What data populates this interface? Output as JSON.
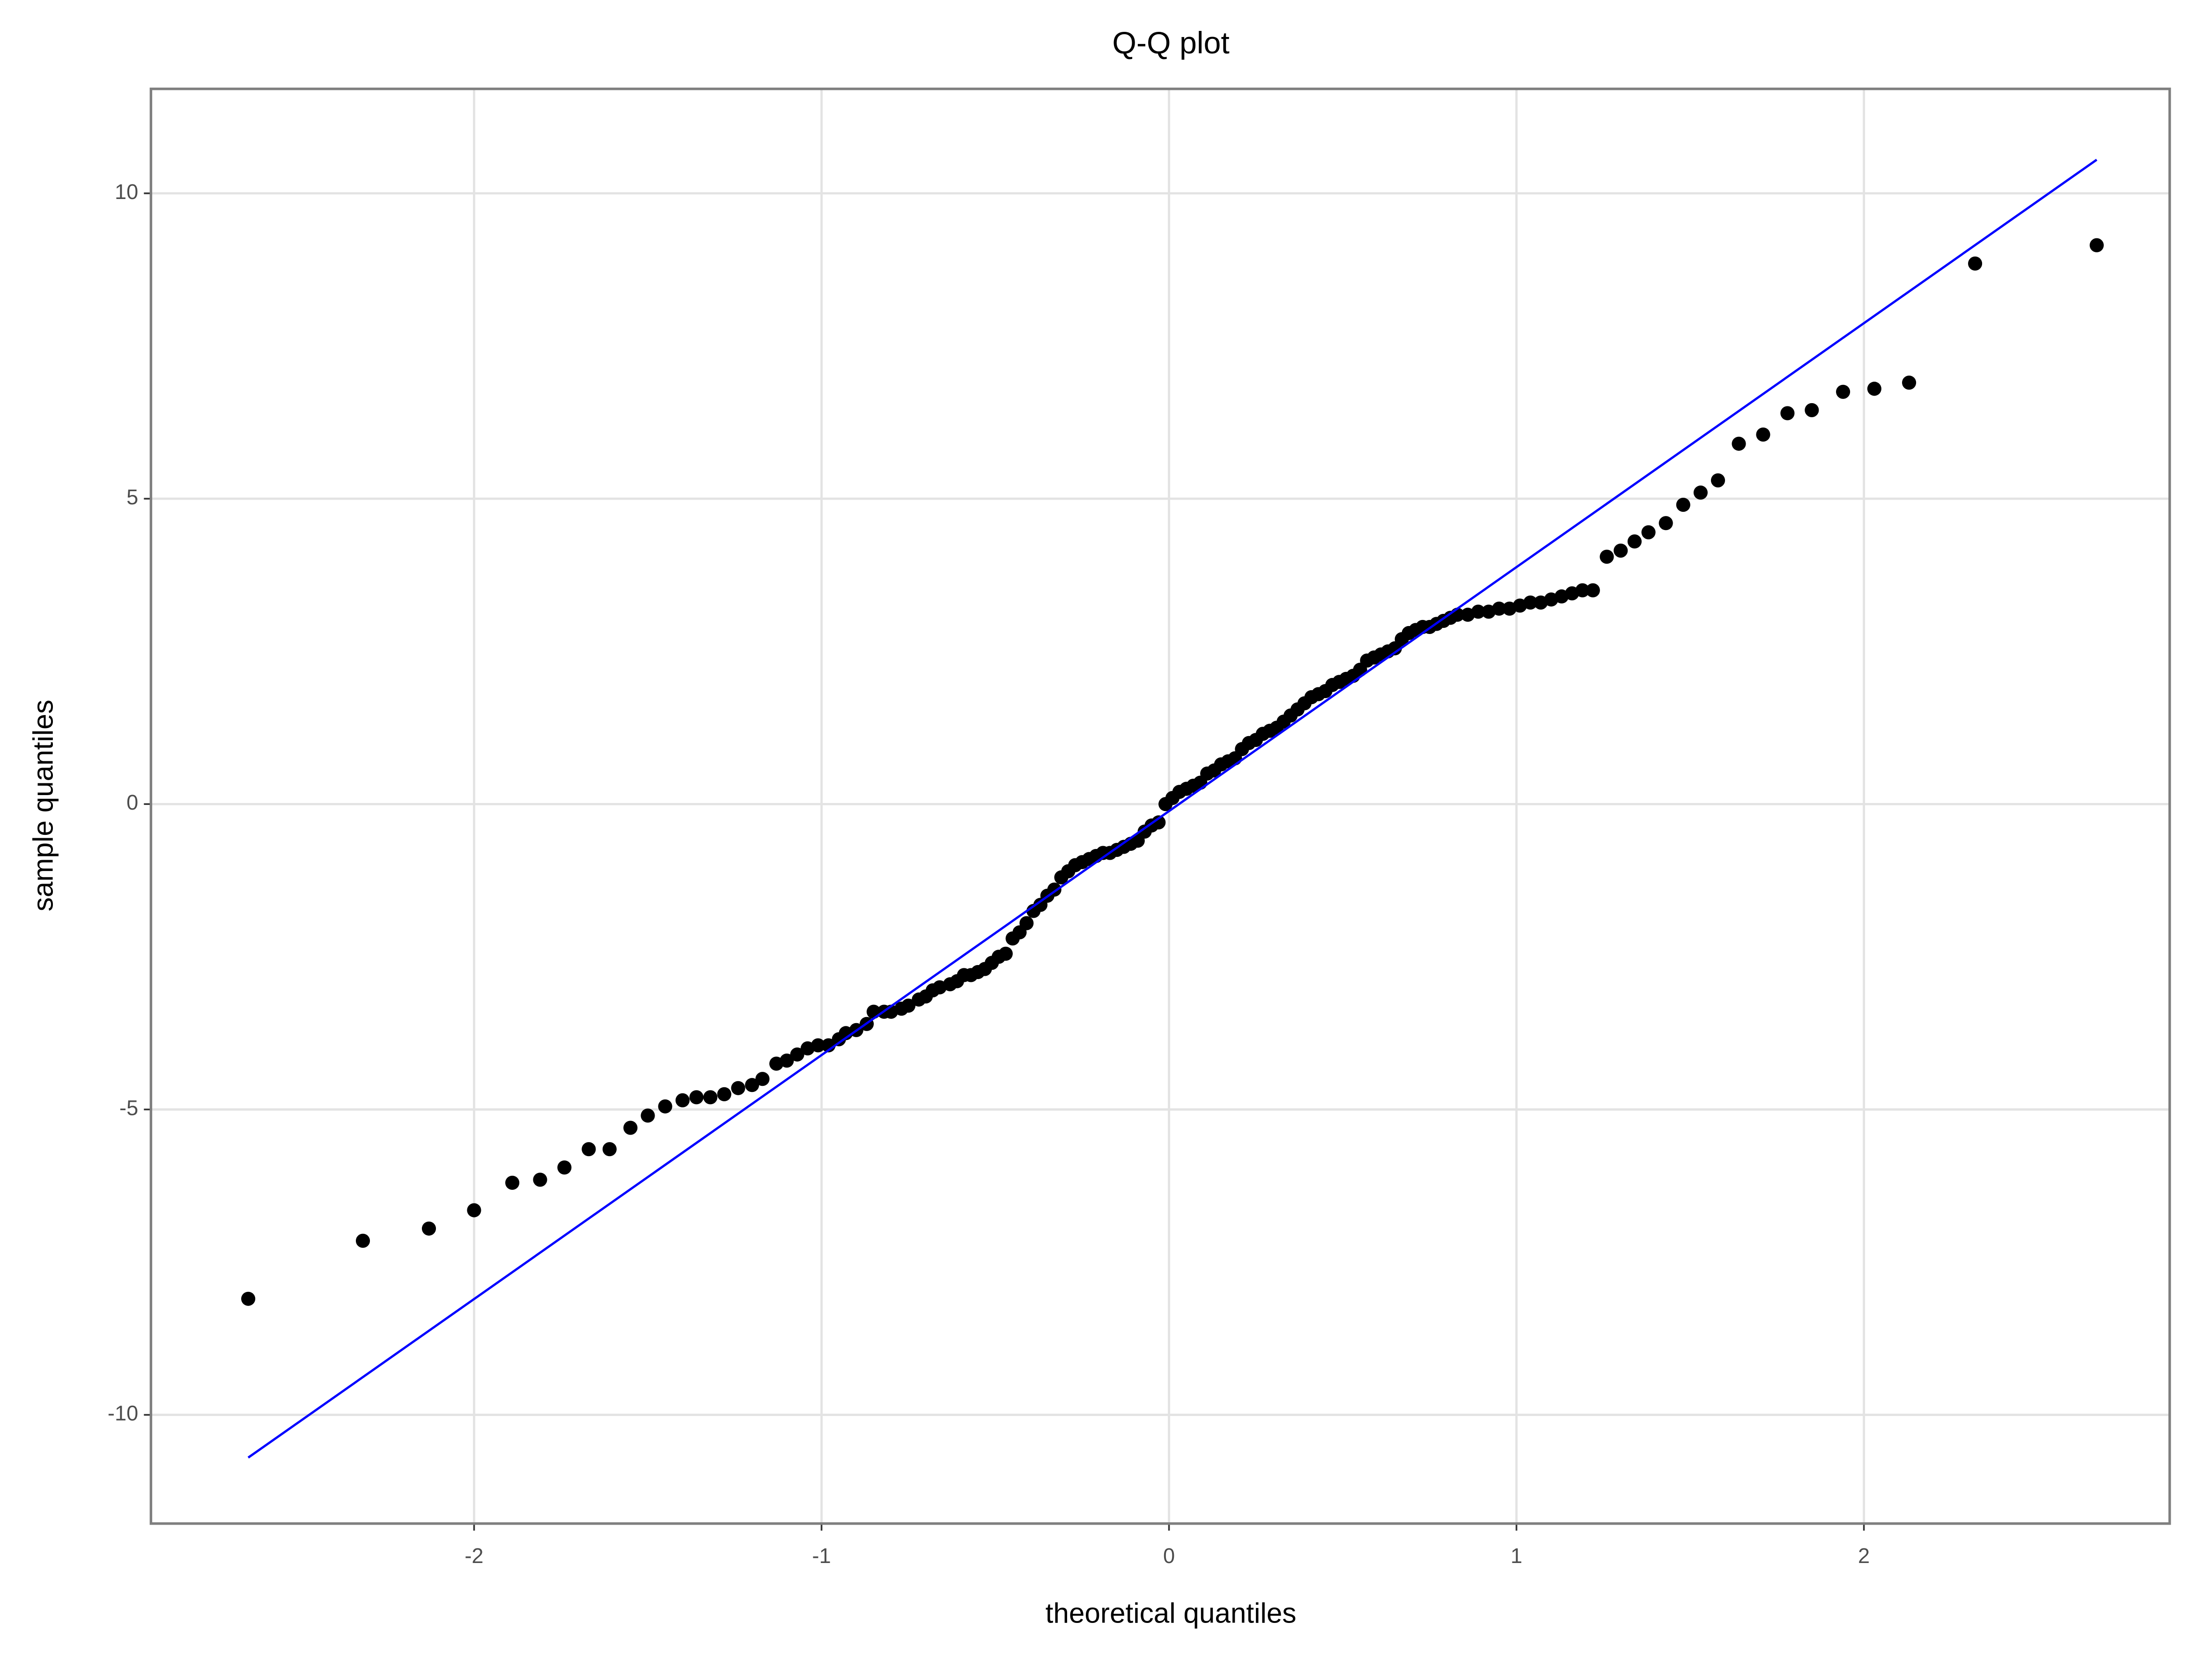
{
  "chart_data": {
    "type": "scatter",
    "title": "Q-Q plot",
    "x_label": "theoretical quantiles",
    "y_label": "sample quantiles",
    "color": "#000000",
    "x": [
      -2.65,
      -2.32,
      -2.13,
      -2.0,
      -1.89,
      -1.81,
      -1.74,
      -1.67,
      -1.61,
      -1.55,
      -1.5,
      -1.45,
      -1.4,
      -1.36,
      -1.32,
      -1.28,
      -1.24,
      -1.2,
      -1.17,
      -1.13,
      -1.1,
      -1.07,
      -1.04,
      -1.01,
      -0.98,
      -0.95,
      -0.93,
      -0.9,
      -0.87,
      -0.85,
      -0.82,
      -0.8,
      -0.77,
      -0.75,
      -0.72,
      -0.7,
      -0.68,
      -0.66,
      -0.63,
      -0.61,
      -0.59,
      -0.57,
      -0.55,
      -0.53,
      -0.51,
      -0.49,
      -0.47,
      -0.45,
      -0.43,
      -0.41,
      -0.39,
      -0.37,
      -0.35,
      -0.33,
      -0.31,
      -0.29,
      -0.27,
      -0.25,
      -0.23,
      -0.21,
      -0.19,
      -0.17,
      -0.15,
      -0.13,
      -0.11,
      -0.09,
      -0.07,
      -0.05,
      -0.03,
      -0.01,
      0.01,
      0.03,
      0.05,
      0.07,
      0.09,
      0.11,
      0.13,
      0.15,
      0.17,
      0.19,
      0.21,
      0.23,
      0.25,
      0.27,
      0.29,
      0.31,
      0.33,
      0.35,
      0.37,
      0.39,
      0.41,
      0.43,
      0.45,
      0.47,
      0.49,
      0.51,
      0.53,
      0.55,
      0.57,
      0.59,
      0.61,
      0.63,
      0.65,
      0.67,
      0.69,
      0.71,
      0.73,
      0.75,
      0.77,
      0.79,
      0.81,
      0.83,
      0.86,
      0.89,
      0.92,
      0.95,
      0.98,
      1.01,
      1.04,
      1.07,
      1.1,
      1.13,
      1.16,
      1.19,
      1.22,
      1.26,
      1.3,
      1.34,
      1.38,
      1.43,
      1.48,
      1.53,
      1.58,
      1.64,
      1.71,
      1.78,
      1.85,
      1.94,
      2.03,
      2.13,
      2.32,
      2.67
    ],
    "values": [
      -8.1,
      -7.15,
      -6.95,
      -6.65,
      -6.2,
      -6.15,
      -5.95,
      -5.65,
      -5.65,
      -5.3,
      -5.1,
      -4.95,
      -4.85,
      -4.8,
      -4.8,
      -4.75,
      -4.65,
      -4.6,
      -4.5,
      -4.25,
      -4.2,
      -4.1,
      -4.0,
      -3.95,
      -3.95,
      -3.85,
      -3.75,
      -3.7,
      -3.6,
      -3.4,
      -3.4,
      -3.4,
      -3.35,
      -3.3,
      -3.2,
      -3.15,
      -3.05,
      -3.0,
      -2.95,
      -2.9,
      -2.8,
      -2.8,
      -2.75,
      -2.7,
      -2.6,
      -2.5,
      -2.45,
      -2.2,
      -2.1,
      -1.95,
      -1.75,
      -1.65,
      -1.5,
      -1.4,
      -1.2,
      -1.1,
      -1.0,
      -0.95,
      -0.9,
      -0.85,
      -0.8,
      -0.8,
      -0.75,
      -0.7,
      -0.65,
      -0.6,
      -0.45,
      -0.35,
      -0.3,
      0.0,
      0.1,
      0.2,
      0.25,
      0.3,
      0.35,
      0.5,
      0.55,
      0.65,
      0.7,
      0.75,
      0.9,
      1.0,
      1.05,
      1.15,
      1.2,
      1.25,
      1.35,
      1.45,
      1.55,
      1.65,
      1.75,
      1.8,
      1.85,
      1.95,
      2.0,
      2.05,
      2.1,
      2.2,
      2.35,
      2.4,
      2.45,
      2.5,
      2.55,
      2.7,
      2.8,
      2.85,
      2.9,
      2.9,
      2.95,
      3.0,
      3.05,
      3.1,
      3.1,
      3.15,
      3.15,
      3.2,
      3.2,
      3.25,
      3.3,
      3.3,
      3.35,
      3.4,
      3.45,
      3.5,
      3.5,
      4.05,
      4.15,
      4.3,
      4.45,
      4.6,
      4.9,
      5.1,
      5.3,
      5.9,
      6.05,
      6.4,
      6.45,
      6.75,
      6.8,
      6.9,
      8.85,
      9.15
    ],
    "line": {
      "x": [
        -2.65,
        2.67
      ],
      "values": [
        -10.7,
        10.55
      ],
      "color": "#0000ff"
    },
    "xlim": [
      -2.93,
      2.88
    ],
    "ylim": [
      -11.78,
      11.71
    ],
    "xticks": [
      -2,
      -1,
      0,
      1,
      2
    ],
    "yticks": [
      -10,
      -5,
      0,
      5,
      10
    ],
    "grid": true
  }
}
